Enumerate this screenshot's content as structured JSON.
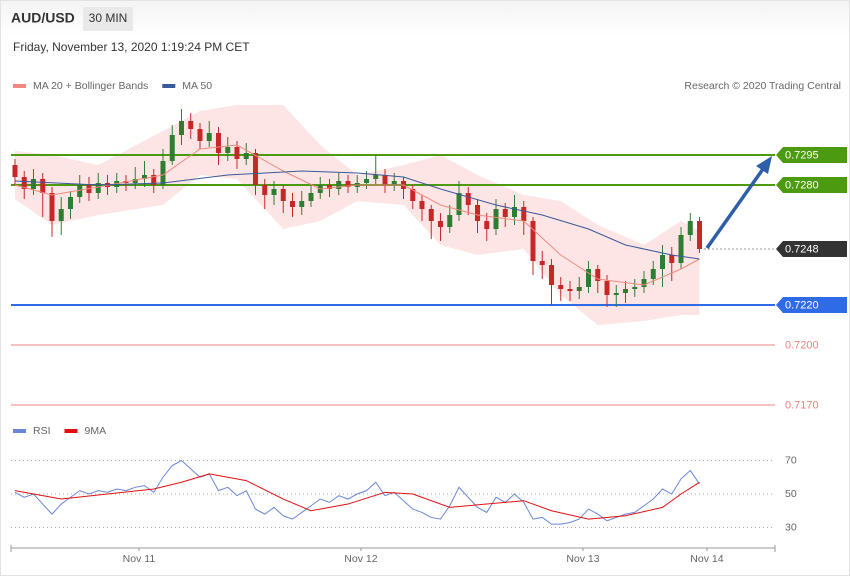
{
  "header": {
    "symbol": "AUD/USD",
    "timeframe": "30 MIN",
    "datetime": "Friday, November 13, 2020 1:19:24 PM CET",
    "credit": "Research © 2020 Trading Central"
  },
  "chart_data": [
    {
      "type": "candlestick",
      "up_color": "#2e7d32",
      "down_color": "#c62828",
      "xlim": [
        -0.43,
        82.16
      ],
      "ylim": [
        0.71625,
        0.73225
      ],
      "x": [
        0,
        1,
        2,
        3,
        4,
        5,
        6,
        7,
        8,
        9,
        10,
        11,
        12,
        13,
        14,
        15,
        16,
        17,
        18,
        19,
        20,
        21,
        22,
        23,
        24,
        25,
        26,
        27,
        28,
        29,
        30,
        31,
        32,
        33,
        34,
        35,
        36,
        37,
        38,
        39,
        40,
        41,
        42,
        43,
        44,
        45,
        46,
        47,
        48,
        49,
        50,
        51,
        52,
        53,
        54,
        55,
        56,
        57,
        58,
        59,
        60,
        61,
        62,
        63,
        64,
        65,
        66,
        67,
        68,
        69,
        70,
        71,
        72,
        73,
        74
      ],
      "ohlc": [
        [
          0.729,
          0.7293,
          0.728,
          0.7284
        ],
        [
          0.7284,
          0.7287,
          0.7273,
          0.7278
        ],
        [
          0.7278,
          0.7288,
          0.7275,
          0.7283
        ],
        [
          0.7283,
          0.7286,
          0.7264,
          0.7276
        ],
        [
          0.7276,
          0.7279,
          0.7254,
          0.7262
        ],
        [
          0.7262,
          0.7274,
          0.7255,
          0.7268
        ],
        [
          0.7268,
          0.7277,
          0.7263,
          0.7274
        ],
        [
          0.7274,
          0.7285,
          0.7271,
          0.728
        ],
        [
          0.728,
          0.7284,
          0.7272,
          0.7276
        ],
        [
          0.7276,
          0.7286,
          0.7273,
          0.7281
        ],
        [
          0.7281,
          0.7285,
          0.7275,
          0.7279
        ],
        [
          0.7279,
          0.7286,
          0.7276,
          0.7282
        ],
        [
          0.7282,
          0.7285,
          0.7277,
          0.7281
        ],
        [
          0.7281,
          0.7289,
          0.7278,
          0.7283
        ],
        [
          0.7283,
          0.7292,
          0.7279,
          0.7285
        ],
        [
          0.7285,
          0.7288,
          0.7276,
          0.728
        ],
        [
          0.728,
          0.7298,
          0.7278,
          0.7292
        ],
        [
          0.7292,
          0.731,
          0.729,
          0.7305
        ],
        [
          0.7305,
          0.7318,
          0.73,
          0.7312
        ],
        [
          0.7312,
          0.7316,
          0.7303,
          0.7308
        ],
        [
          0.7308,
          0.7311,
          0.7298,
          0.7302
        ],
        [
          0.7302,
          0.7312,
          0.7299,
          0.7306
        ],
        [
          0.7306,
          0.7309,
          0.729,
          0.7296
        ],
        [
          0.7296,
          0.7304,
          0.7292,
          0.7299
        ],
        [
          0.7299,
          0.7302,
          0.7288,
          0.7293
        ],
        [
          0.7293,
          0.7301,
          0.729,
          0.7296
        ],
        [
          0.7296,
          0.7298,
          0.7275,
          0.728
        ],
        [
          0.728,
          0.7283,
          0.7268,
          0.7275
        ],
        [
          0.7275,
          0.7282,
          0.727,
          0.7278
        ],
        [
          0.7278,
          0.728,
          0.7266,
          0.7272
        ],
        [
          0.7272,
          0.7276,
          0.7264,
          0.7269
        ],
        [
          0.7269,
          0.7277,
          0.7265,
          0.7272
        ],
        [
          0.7272,
          0.728,
          0.7269,
          0.7276
        ],
        [
          0.7276,
          0.7284,
          0.7273,
          0.728
        ],
        [
          0.728,
          0.7283,
          0.7274,
          0.7278
        ],
        [
          0.7278,
          0.7286,
          0.7275,
          0.7282
        ],
        [
          0.7282,
          0.7285,
          0.7276,
          0.7279
        ],
        [
          0.7279,
          0.7285,
          0.7276,
          0.7281
        ],
        [
          0.7281,
          0.7287,
          0.7278,
          0.7283
        ],
        [
          0.7283,
          0.7295,
          0.728,
          0.7285
        ],
        [
          0.7285,
          0.7288,
          0.7276,
          0.728
        ],
        [
          0.728,
          0.7286,
          0.7277,
          0.7282
        ],
        [
          0.7282,
          0.7284,
          0.7273,
          0.7278
        ],
        [
          0.7278,
          0.728,
          0.7268,
          0.7272
        ],
        [
          0.7272,
          0.7275,
          0.7262,
          0.7268
        ],
        [
          0.7268,
          0.727,
          0.7253,
          0.7262
        ],
        [
          0.7262,
          0.7266,
          0.7252,
          0.7259
        ],
        [
          0.7259,
          0.727,
          0.7256,
          0.7265
        ],
        [
          0.7265,
          0.7282,
          0.7262,
          0.7276
        ],
        [
          0.7276,
          0.7279,
          0.7265,
          0.727
        ],
        [
          0.727,
          0.7273,
          0.7256,
          0.7262
        ],
        [
          0.7262,
          0.7266,
          0.7252,
          0.7258
        ],
        [
          0.7258,
          0.7273,
          0.7255,
          0.7268
        ],
        [
          0.7268,
          0.7271,
          0.7259,
          0.7264
        ],
        [
          0.7264,
          0.7275,
          0.726,
          0.7269
        ],
        [
          0.7269,
          0.7272,
          0.7255,
          0.7262
        ],
        [
          0.7262,
          0.7264,
          0.7235,
          0.7242
        ],
        [
          0.7242,
          0.7247,
          0.7233,
          0.724
        ],
        [
          0.724,
          0.7243,
          0.722,
          0.723
        ],
        [
          0.723,
          0.7234,
          0.7222,
          0.7228
        ],
        [
          0.7228,
          0.7232,
          0.7222,
          0.7227
        ],
        [
          0.7227,
          0.7234,
          0.7223,
          0.7229
        ],
        [
          0.7229,
          0.7242,
          0.7226,
          0.7238
        ],
        [
          0.7238,
          0.724,
          0.7226,
          0.7232
        ],
        [
          0.7232,
          0.7235,
          0.7219,
          0.7225
        ],
        [
          0.7225,
          0.723,
          0.7219,
          0.7226
        ],
        [
          0.7226,
          0.7232,
          0.7221,
          0.7228
        ],
        [
          0.7228,
          0.7233,
          0.7224,
          0.7229
        ],
        [
          0.7229,
          0.7237,
          0.7226,
          0.7233
        ],
        [
          0.7233,
          0.7242,
          0.723,
          0.7238
        ],
        [
          0.7238,
          0.725,
          0.7229,
          0.7245
        ],
        [
          0.7245,
          0.7249,
          0.7232,
          0.7241
        ],
        [
          0.7241,
          0.7259,
          0.7238,
          0.7255
        ],
        [
          0.7255,
          0.7266,
          0.7252,
          0.7262
        ],
        [
          0.7262,
          0.7264,
          0.7246,
          0.7248
        ]
      ],
      "series": [
        {
          "name": "MA 20 + Bollinger Bands",
          "color": "#f08a80",
          "band_color": "#fde1e1",
          "x": [
            0,
            4,
            9,
            16,
            20,
            24,
            29,
            33,
            37,
            42,
            46,
            50,
            55,
            59,
            63,
            68,
            72,
            74
          ],
          "values": [
            0.728,
            0.7275,
            0.7279,
            0.7285,
            0.7298,
            0.73,
            0.7287,
            0.7278,
            0.728,
            0.728,
            0.727,
            0.7265,
            0.7262,
            0.7245,
            0.7233,
            0.723,
            0.7238,
            0.7243
          ],
          "upper": [
            0.7297,
            0.7295,
            0.729,
            0.7307,
            0.7317,
            0.732,
            0.732,
            0.73,
            0.7285,
            0.729,
            0.7295,
            0.7285,
            0.7275,
            0.7272,
            0.726,
            0.725,
            0.7262,
            0.7257
          ],
          "lower": [
            0.7273,
            0.726,
            0.7265,
            0.727,
            0.7285,
            0.7283,
            0.7258,
            0.7262,
            0.7272,
            0.727,
            0.725,
            0.7245,
            0.7248,
            0.7225,
            0.721,
            0.7212,
            0.7215,
            0.7215
          ]
        },
        {
          "name": "MA 50",
          "color": "#3a5a9a",
          "x": [
            0,
            9,
            16,
            23,
            31,
            37,
            42,
            46,
            52,
            57,
            62,
            66,
            71,
            74
          ],
          "values": [
            0.7282,
            0.728,
            0.7281,
            0.7285,
            0.7287,
            0.7286,
            0.7284,
            0.7278,
            0.727,
            0.7265,
            0.7258,
            0.725,
            0.7245,
            0.7243
          ]
        }
      ],
      "levels": [
        {
          "value": 0.7295,
          "color": "#4c9a10",
          "line": "solid",
          "box": true
        },
        {
          "value": 0.728,
          "label": "0.7280",
          "color": "#4c9a10",
          "line": "solid",
          "box": true
        },
        {
          "value": 0.7248,
          "color": "#333333",
          "line": "dotted",
          "box": true
        },
        {
          "value": 0.722,
          "label": "0.7220",
          "color": "#2f6be6",
          "line": "solid",
          "box": true
        },
        {
          "value": 0.72,
          "label": "0.7200",
          "color": "#f08080",
          "line": "solid",
          "box": false
        },
        {
          "value": 0.717,
          "label": "0.7170",
          "color": "#f08080",
          "line": "solid",
          "box": false
        }
      ]
    },
    {
      "type": "line",
      "xlim": [
        -0.43,
        82.16
      ],
      "ylim": [
        20,
        80
      ],
      "yticks": [
        30,
        50,
        70
      ],
      "grid": "dotted",
      "xticks": [
        {
          "value": 13.4,
          "label": "Nov 11"
        },
        {
          "value": 37.4,
          "label": "Nov 12"
        },
        {
          "value": 61.4,
          "label": "Nov 13"
        },
        {
          "value": 74.8,
          "label": "Nov 14"
        }
      ],
      "series": [
        {
          "name": "RSI",
          "color": "#6a86d8",
          "x": [
            0,
            1,
            2,
            3,
            4,
            5,
            6,
            7,
            8,
            9,
            10,
            11,
            12,
            13,
            14,
            15,
            16,
            17,
            18,
            19,
            20,
            21,
            22,
            23,
            24,
            25,
            26,
            27,
            28,
            29,
            30,
            31,
            32,
            33,
            34,
            35,
            36,
            37,
            38,
            39,
            40,
            41,
            42,
            43,
            44,
            45,
            46,
            47,
            48,
            49,
            50,
            51,
            52,
            53,
            54,
            55,
            56,
            57,
            58,
            59,
            60,
            61,
            62,
            63,
            64,
            65,
            66,
            67,
            68,
            69,
            70,
            71,
            72,
            73,
            74
          ],
          "values": [
            51,
            48,
            50,
            44,
            38,
            44,
            48,
            52,
            50,
            52,
            51,
            53,
            52,
            54,
            55,
            51,
            60,
            67,
            70,
            65,
            60,
            62,
            52,
            54,
            49,
            52,
            41,
            38,
            42,
            37,
            35,
            39,
            43,
            47,
            45,
            49,
            47,
            50,
            52,
            57,
            49,
            51,
            46,
            41,
            39,
            36,
            35,
            43,
            54,
            48,
            42,
            39,
            48,
            45,
            50,
            45,
            35,
            36,
            32,
            32,
            33,
            35,
            41,
            38,
            34,
            36,
            38,
            39,
            43,
            47,
            53,
            50,
            59,
            64,
            56
          ]
        },
        {
          "name": "9MA",
          "color": "#e01010",
          "x": [
            0,
            5,
            10,
            15,
            18,
            21,
            25,
            29,
            32,
            36,
            40,
            43,
            47,
            51,
            55,
            58,
            62,
            66,
            70,
            72,
            74
          ],
          "values": [
            52,
            47,
            50,
            53,
            57,
            62,
            58,
            47,
            40,
            44,
            51,
            50,
            42,
            44,
            46,
            40,
            35,
            37,
            42,
            50,
            57
          ]
        }
      ]
    }
  ]
}
